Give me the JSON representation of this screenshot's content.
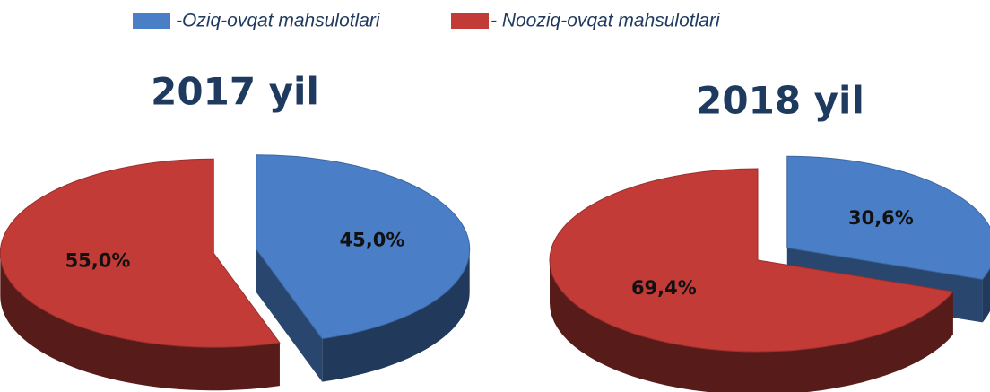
{
  "legend": [
    "-Oziq-ovqat mahsulotlari",
    "- Nooziq-ovqat mahsulotlari"
  ],
  "chart_data": [
    {
      "type": "pie",
      "title": "2017 yil",
      "categories": [
        "-Oziq-ovqat mahsulotlari",
        "- Nooziq-ovqat mahsulotlari"
      ],
      "values": [
        45.0,
        55.0
      ],
      "value_labels": [
        "45,0%",
        "55,0%"
      ],
      "colors": [
        "#4a7fc8",
        "#c23b37"
      ]
    },
    {
      "type": "pie",
      "title": "2018 yil",
      "categories": [
        "-Oziq-ovqat mahsulotlari",
        "- Nooziq-ovqat mahsulotlari"
      ],
      "values": [
        30.6,
        69.4
      ],
      "value_labels": [
        "30,6%",
        "69,4%"
      ],
      "colors": [
        "#4a7fc8",
        "#c23b37"
      ]
    }
  ]
}
